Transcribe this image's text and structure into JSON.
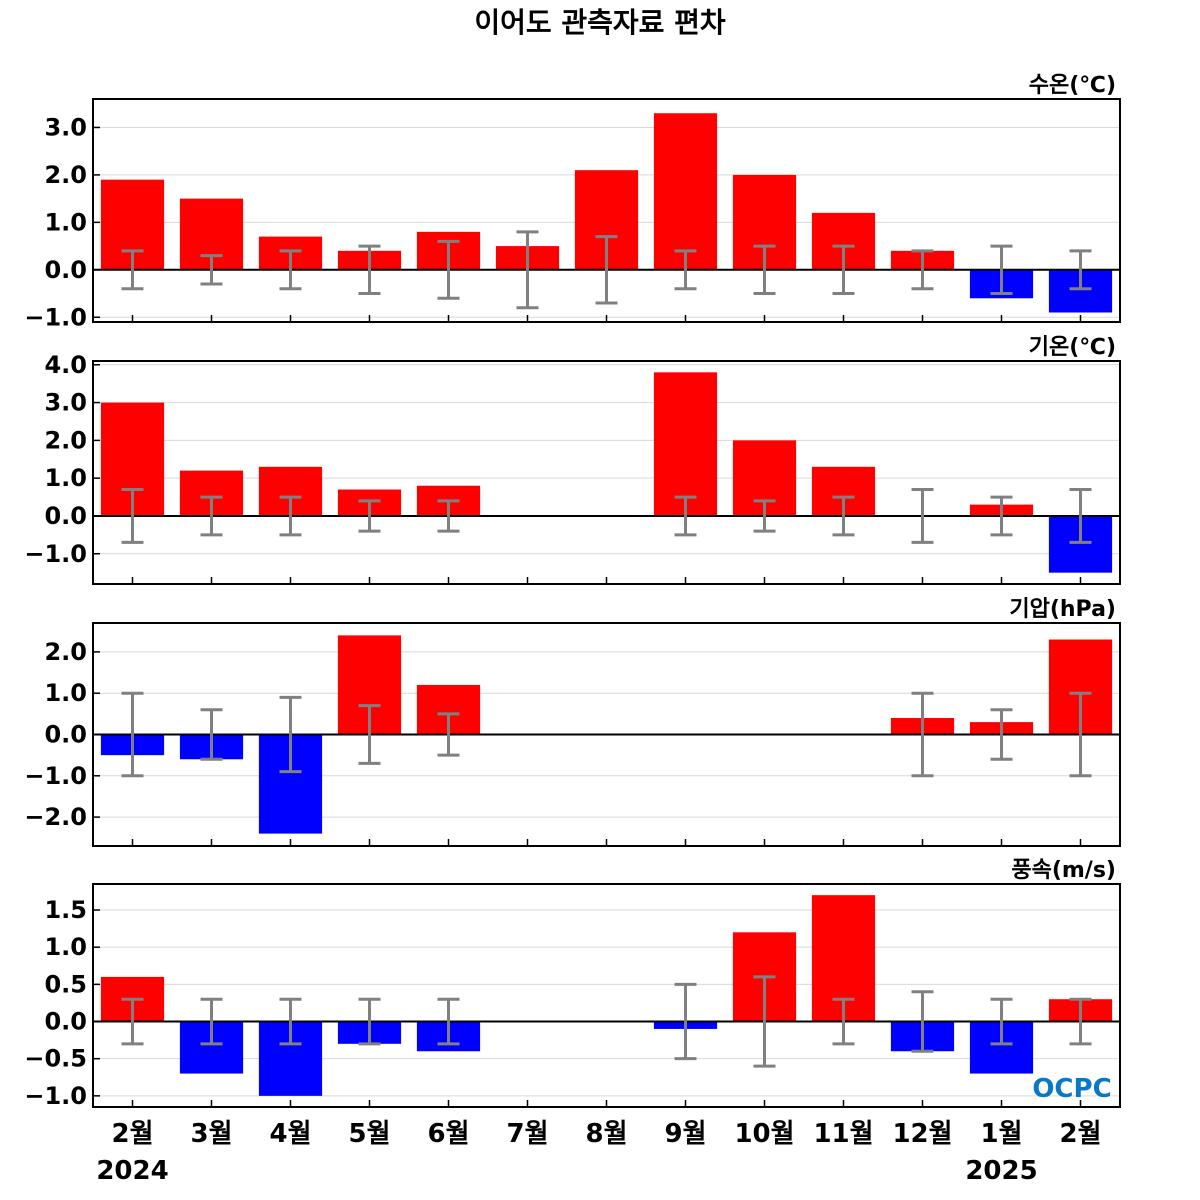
{
  "title": "이어도 관측자료 편차",
  "categories": [
    "2월",
    "3월",
    "4월",
    "5월",
    "6월",
    "7월",
    "8월",
    "9월",
    "10월",
    "11월",
    "12월",
    "1월",
    "2월"
  ],
  "years": [
    {
      "label": "2024",
      "category_index": 0
    },
    {
      "label": "2025",
      "category_index": 11
    }
  ],
  "logo": {
    "text": "OCPC"
  },
  "colors": {
    "positive": "#ff0000",
    "negative": "#0000ff",
    "error_bar": "#808080",
    "grid": "#d9d9d9",
    "logo": "#0a78c8"
  },
  "chart_data": [
    {
      "type": "bar",
      "label": "수온(℃)",
      "ylim": [
        -1.1,
        3.6
      ],
      "yticks": [
        -1.0,
        0.0,
        1.0,
        2.0,
        3.0
      ],
      "ytick_labels": [
        "−1.0",
        "0.0",
        "1.0",
        "2.0",
        "3.0"
      ],
      "grid": true,
      "values": [
        1.9,
        1.5,
        0.7,
        0.4,
        0.8,
        0.5,
        2.1,
        3.3,
        2.0,
        1.2,
        0.4,
        -0.6,
        -0.9
      ],
      "error_bars": [
        0.4,
        0.3,
        0.4,
        0.5,
        0.6,
        0.8,
        0.7,
        0.4,
        0.5,
        0.5,
        0.4,
        0.5,
        0.4
      ]
    },
    {
      "type": "bar",
      "label": "기온(℃)",
      "ylim": [
        -1.8,
        4.1
      ],
      "yticks": [
        -1.0,
        0.0,
        1.0,
        2.0,
        3.0,
        4.0
      ],
      "ytick_labels": [
        "−1.0",
        "0.0",
        "1.0",
        "2.0",
        "3.0",
        "4.0"
      ],
      "grid": true,
      "values": [
        3.0,
        1.2,
        1.3,
        0.7,
        0.8,
        null,
        null,
        3.8,
        2.0,
        1.3,
        0.0,
        0.3,
        -1.5
      ],
      "error_bars": [
        0.7,
        0.5,
        0.5,
        0.4,
        0.4,
        null,
        null,
        0.5,
        0.4,
        0.5,
        0.7,
        0.5,
        0.7
      ]
    },
    {
      "type": "bar",
      "label": "기압(hPa)",
      "ylim": [
        -2.7,
        2.7
      ],
      "yticks": [
        -2.0,
        -1.0,
        0.0,
        1.0,
        2.0
      ],
      "ytick_labels": [
        "−2.0",
        "−1.0",
        "0.0",
        "1.0",
        "2.0"
      ],
      "grid": true,
      "values": [
        -0.5,
        -0.6,
        -2.4,
        2.4,
        1.2,
        null,
        null,
        null,
        null,
        null,
        0.4,
        0.3,
        2.3
      ],
      "error_bars": [
        1.0,
        0.6,
        0.9,
        0.7,
        0.5,
        null,
        null,
        null,
        null,
        null,
        1.0,
        0.6,
        1.0
      ]
    },
    {
      "type": "bar",
      "label": "풍속(m/s)",
      "ylim": [
        -1.15,
        1.85
      ],
      "yticks": [
        -1.0,
        -0.5,
        0.0,
        0.5,
        1.0,
        1.5
      ],
      "ytick_labels": [
        "−1.0",
        "−0.5",
        "0.0",
        "0.5",
        "1.0",
        "1.5"
      ],
      "grid": true,
      "values": [
        0.6,
        -0.7,
        -1.0,
        -0.3,
        -0.4,
        null,
        null,
        -0.1,
        1.2,
        1.7,
        -0.4,
        -0.7,
        0.3
      ],
      "error_bars": [
        0.3,
        0.3,
        0.3,
        0.3,
        0.3,
        null,
        null,
        0.5,
        0.6,
        0.3,
        0.4,
        0.3,
        0.3
      ]
    }
  ]
}
